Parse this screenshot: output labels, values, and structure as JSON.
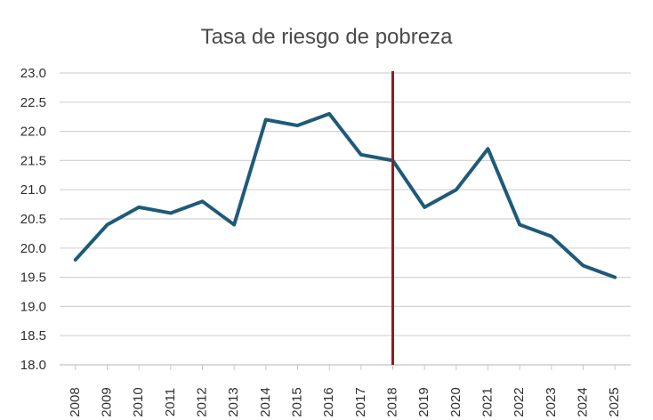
{
  "chart_data": {
    "type": "line",
    "title": "Tasa de riesgo de pobreza",
    "xlabel": "",
    "ylabel": "",
    "x": [
      "2008",
      "2009",
      "2010",
      "2011",
      "2012",
      "2013",
      "2014",
      "2015",
      "2016",
      "2017",
      "2018",
      "2019",
      "2020",
      "2021",
      "2022",
      "2023",
      "2024",
      "2025"
    ],
    "series": [
      {
        "values": [
          19.8,
          20.4,
          20.7,
          20.6,
          20.8,
          20.4,
          22.2,
          22.1,
          22.3,
          21.6,
          21.5,
          20.7,
          21.0,
          21.7,
          20.4,
          20.2,
          19.7,
          19.5
        ],
        "color": "#1f5a78"
      }
    ],
    "ylim": [
      18.0,
      23.0
    ],
    "yticks": [
      "18.0",
      "18.5",
      "19.0",
      "19.5",
      "20.0",
      "20.5",
      "21.0",
      "21.5",
      "22.0",
      "22.5",
      "23.0"
    ],
    "grid": true,
    "reference_line": {
      "x": "2018",
      "color": "#8b1f1f"
    },
    "legend": "none"
  }
}
